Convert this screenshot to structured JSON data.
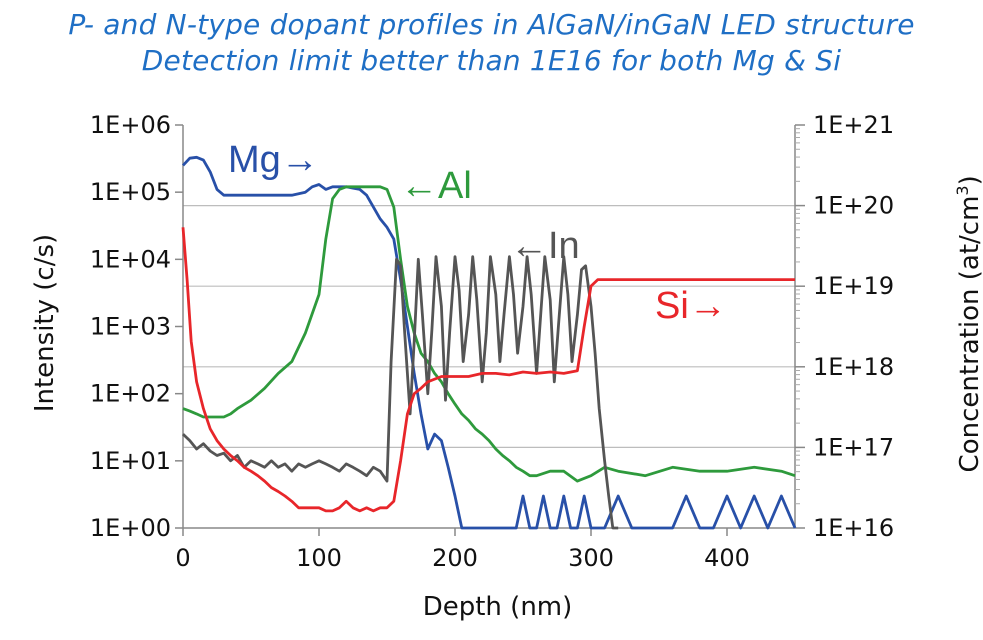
{
  "chart_data": {
    "type": "line",
    "title": "P- and N-type dopant profiles in AlGaN/inGaN LED structure",
    "subtitle": "Detection limit better than 1E16 for both Mg & Si",
    "xlabel": "Depth (nm)",
    "ylabel": "Intensity (c/s)",
    "ylabel_right_main": "Concentration (at/cm",
    "ylabel_right_sup": "3",
    "ylabel_right_close": ")",
    "xlim": [
      0,
      450
    ],
    "ylim": [
      1,
      1000000
    ],
    "ylim_right": [
      1e+16,
      1e+21
    ],
    "yscale": "log",
    "grid": "horizontal",
    "x_ticks": [
      "0",
      "100",
      "200",
      "300",
      "400"
    ],
    "y_ticks_left": [
      "1E+00",
      "1E+01",
      "1E+02",
      "1E+03",
      "1E+04",
      "1E+05",
      "1E+06"
    ],
    "y_ticks_right": [
      "1E+16",
      "1E+17",
      "1E+18",
      "1E+19",
      "1E+20",
      "1E+21"
    ],
    "annotations": [
      {
        "text": "Mg→",
        "color": "#2850a8"
      },
      {
        "text": "←Al",
        "color": "#2e9a3c"
      },
      {
        "text": "←In",
        "color": "#555555"
      },
      {
        "text": "Si→",
        "color": "#e8262a"
      }
    ],
    "series": [
      {
        "name": "Mg",
        "color": "#2850a8",
        "x": [
          0,
          5,
          10,
          15,
          20,
          25,
          30,
          40,
          50,
          60,
          70,
          80,
          90,
          95,
          100,
          105,
          110,
          115,
          120,
          125,
          130,
          135,
          140,
          145,
          150,
          155,
          160,
          165,
          170,
          175,
          180,
          185,
          190,
          195,
          200,
          205,
          210,
          215,
          220,
          225,
          230,
          235,
          240,
          245,
          250,
          255,
          260,
          265,
          270,
          275,
          280,
          285,
          290,
          295,
          300,
          310,
          320,
          330,
          340,
          350,
          360,
          370,
          380,
          390,
          400,
          410,
          420,
          430,
          440,
          450
        ],
        "y": [
          250000,
          320000,
          330000,
          300000,
          200000,
          110000,
          90000,
          90000,
          90000,
          90000,
          90000,
          90000,
          100000,
          120000,
          130000,
          110000,
          120000,
          120000,
          120000,
          115000,
          110000,
          90000,
          60000,
          40000,
          30000,
          20000,
          5000,
          1000,
          200,
          50,
          15,
          25,
          20,
          8,
          3,
          1,
          1,
          1,
          1,
          1,
          1,
          1,
          1,
          1,
          3,
          1,
          1,
          3,
          1,
          1,
          3,
          1,
          1,
          3,
          1,
          1,
          3,
          1,
          1,
          1,
          1,
          3,
          1,
          1,
          3,
          1,
          3,
          1,
          3,
          1
        ]
      },
      {
        "name": "Al",
        "color": "#2e9a3c",
        "x": [
          0,
          5,
          10,
          15,
          20,
          25,
          30,
          35,
          40,
          50,
          60,
          70,
          80,
          90,
          100,
          105,
          110,
          115,
          120,
          125,
          130,
          135,
          140,
          145,
          150,
          155,
          160,
          165,
          170,
          175,
          180,
          185,
          190,
          195,
          200,
          205,
          210,
          215,
          220,
          225,
          230,
          235,
          240,
          245,
          250,
          255,
          260,
          270,
          280,
          290,
          300,
          310,
          320,
          340,
          360,
          380,
          400,
          420,
          440,
          450
        ],
        "y": [
          60,
          55,
          50,
          45,
          45,
          45,
          45,
          50,
          60,
          80,
          120,
          200,
          300,
          800,
          3000,
          20000,
          80000,
          110000,
          120000,
          120000,
          120000,
          120000,
          120000,
          120000,
          110000,
          60000,
          10000,
          2000,
          800,
          400,
          300,
          200,
          150,
          100,
          70,
          50,
          40,
          30,
          25,
          20,
          15,
          12,
          10,
          8,
          7,
          6,
          6,
          7,
          7,
          5,
          6,
          8,
          7,
          6,
          8,
          7,
          7,
          8,
          7,
          6
        ]
      },
      {
        "name": "In",
        "color": "#555555",
        "x": [
          0,
          5,
          10,
          15,
          20,
          25,
          30,
          35,
          40,
          45,
          50,
          55,
          60,
          65,
          70,
          75,
          80,
          85,
          90,
          95,
          100,
          105,
          110,
          115,
          120,
          125,
          130,
          135,
          140,
          145,
          150,
          153,
          157,
          160,
          163,
          167,
          170,
          173,
          176,
          180,
          183,
          186,
          190,
          193,
          196,
          200,
          203,
          206,
          210,
          213,
          216,
          220,
          223,
          226,
          230,
          233,
          236,
          240,
          243,
          246,
          250,
          253,
          256,
          260,
          263,
          266,
          270,
          273,
          276,
          280,
          283,
          286,
          290,
          293,
          296,
          300,
          303,
          306,
          310,
          313,
          316,
          320
        ],
        "y": [
          25,
          20,
          15,
          18,
          14,
          12,
          13,
          10,
          12,
          8,
          10,
          9,
          8,
          10,
          8,
          9,
          7,
          9,
          8,
          9,
          10,
          9,
          8,
          7,
          9,
          8,
          7,
          6,
          8,
          7,
          5,
          300,
          10000,
          8000,
          800,
          50,
          600,
          10000,
          1500,
          100,
          900,
          11000,
          2000,
          80,
          800,
          11000,
          3500,
          300,
          1500,
          11000,
          2500,
          150,
          800,
          11000,
          3000,
          300,
          1500,
          11000,
          3000,
          400,
          2000,
          11000,
          3000,
          200,
          1500,
          11000,
          2500,
          150,
          1000,
          11000,
          3000,
          300,
          1500,
          7000,
          8000,
          2000,
          400,
          60,
          10,
          3,
          1,
          1
        ]
      },
      {
        "name": "Si",
        "color": "#e8262a",
        "x": [
          0,
          3,
          6,
          10,
          15,
          20,
          25,
          30,
          35,
          40,
          45,
          50,
          55,
          60,
          65,
          70,
          75,
          80,
          85,
          90,
          95,
          100,
          105,
          110,
          115,
          120,
          125,
          130,
          135,
          140,
          145,
          150,
          155,
          160,
          165,
          170,
          175,
          180,
          190,
          200,
          210,
          220,
          230,
          240,
          250,
          260,
          270,
          280,
          290,
          295,
          300,
          305,
          310,
          320,
          340,
          360,
          380,
          400,
          420,
          440,
          450
        ],
        "y": [
          30000,
          5000,
          600,
          150,
          60,
          30,
          20,
          15,
          12,
          10,
          8,
          7,
          6,
          5,
          4,
          3.5,
          3,
          2.5,
          2,
          2,
          2,
          2,
          1.8,
          1.8,
          2,
          2.5,
          2,
          1.8,
          2,
          1.8,
          2,
          2,
          2.5,
          10,
          50,
          100,
          120,
          150,
          180,
          180,
          180,
          200,
          200,
          190,
          210,
          200,
          210,
          200,
          220,
          1000,
          4000,
          5000,
          5000,
          5000,
          5000,
          5000,
          5000,
          5000,
          5000,
          5000,
          5000
        ]
      }
    ]
  }
}
